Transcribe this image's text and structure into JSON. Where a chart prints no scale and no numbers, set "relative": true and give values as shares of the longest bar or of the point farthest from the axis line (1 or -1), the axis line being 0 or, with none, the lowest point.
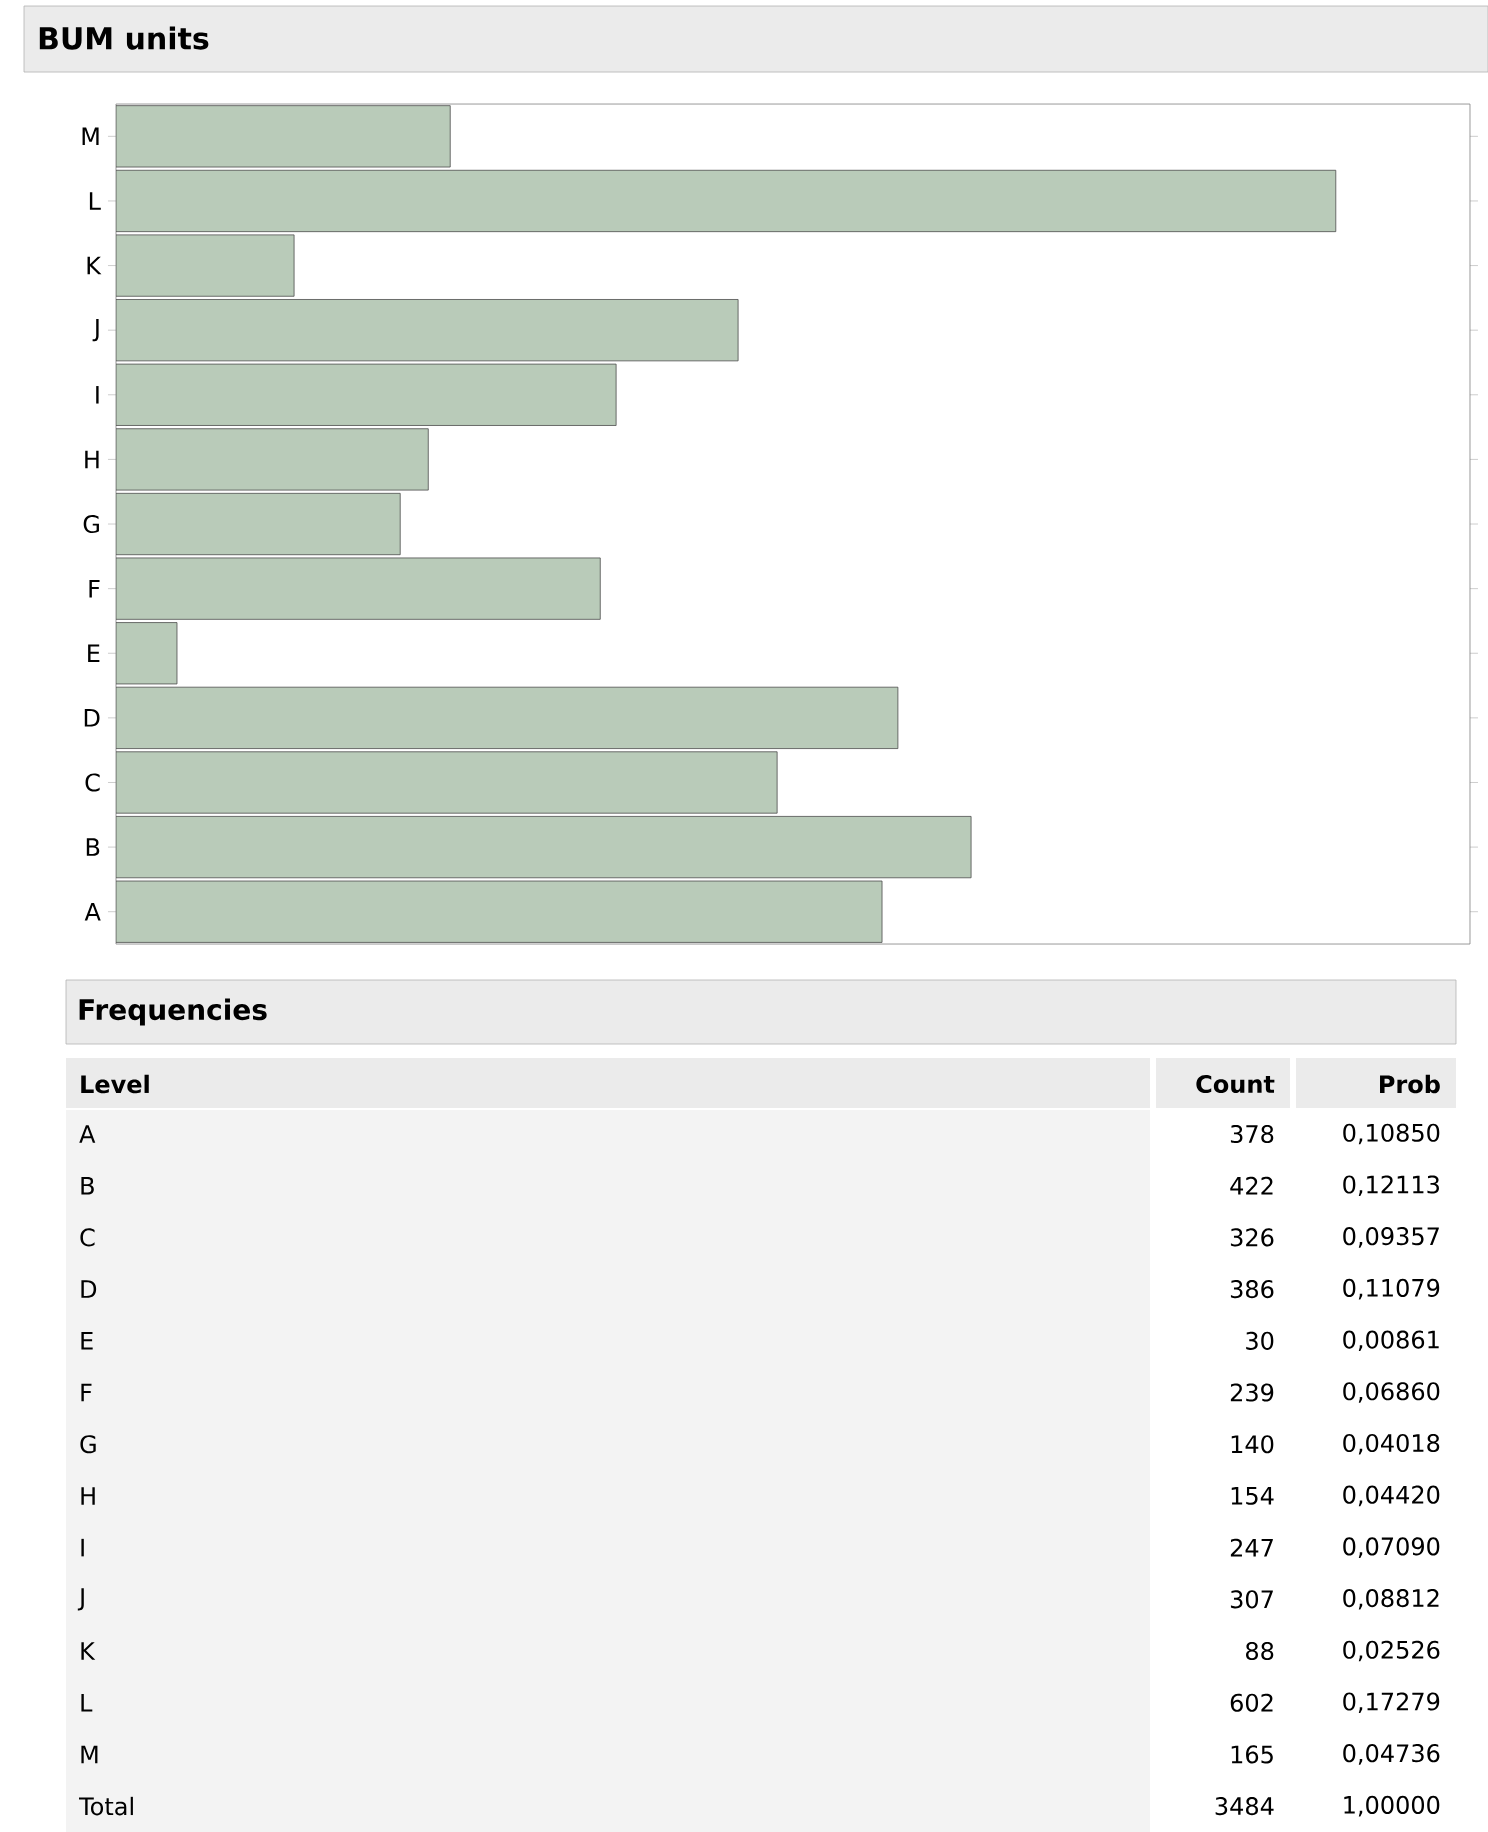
{
  "chart_data": {
    "type": "bar",
    "orientation": "horizontal",
    "title": "BUM units",
    "categories": [
      "M",
      "L",
      "K",
      "J",
      "I",
      "H",
      "G",
      "F",
      "E",
      "D",
      "C",
      "B",
      "A"
    ],
    "values": [
      0.274,
      1,
      0.146,
      0.51,
      0.41,
      0.256,
      0.233,
      0.397,
      0.05,
      0.641,
      0.542,
      0.701,
      0.628
    ],
    "relative": true,
    "color": "#b9cbb9",
    "annotations": [
      "Frequencies",
      "Level",
      "Count",
      "Prob",
      "378",
      "0,10850",
      "422",
      "0,12113",
      "326",
      "0,09357",
      "386",
      "0,11079",
      "30",
      "0,00861",
      "239",
      "0,06860",
      "140",
      "0,04018",
      "154",
      "0,04420",
      "247",
      "0,07090",
      "307",
      "0,08812",
      "88",
      "0,02526",
      "602",
      "0,17279",
      "165",
      "0,04736",
      "Total",
      "3484",
      "1,00000"
    ]
  }
}
